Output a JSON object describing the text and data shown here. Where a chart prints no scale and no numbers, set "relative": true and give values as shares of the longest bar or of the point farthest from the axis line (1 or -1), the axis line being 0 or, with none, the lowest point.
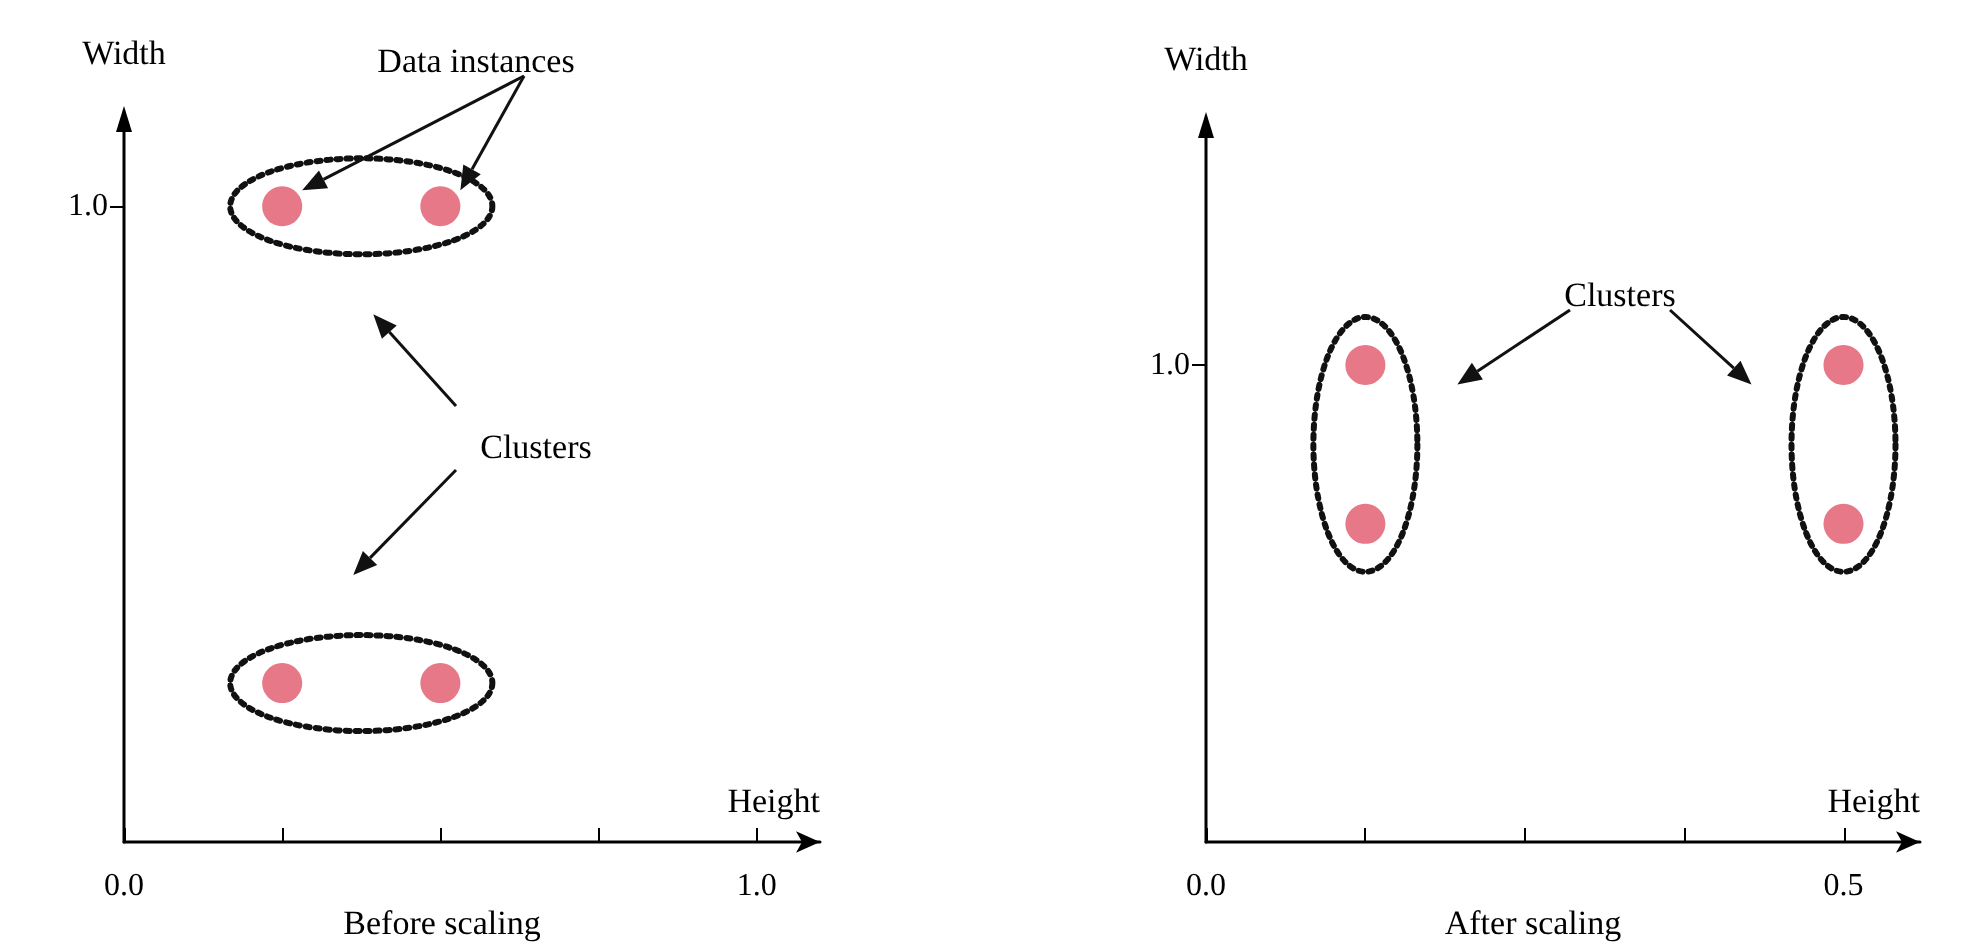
{
  "chart_data": [
    {
      "type": "scatter",
      "title": "Before scaling",
      "xlabel": "Height",
      "ylabel": "Width",
      "annotations": [
        "Data instances",
        "Clusters",
        "1.0"
      ],
      "x": [
        0.25,
        0.5,
        0.25,
        0.5
      ],
      "series": [
        {
          "color": "#e0566a",
          "values": [
            1.0,
            1.0,
            0.25,
            0.25
          ]
        }
      ],
      "xlim": [
        0,
        1.1
      ],
      "relative": true,
      "xticks": [
        {
          "value": 0,
          "label": "0.0"
        },
        {
          "value": 0.25,
          "label": null
        },
        {
          "value": 0.5,
          "label": null
        },
        {
          "value": 0.75,
          "label": null
        },
        {
          "value": 1,
          "label": "1.0"
        }
      ],
      "marker": "circle",
      "grid": false
    },
    {
      "type": "scatter",
      "title": "After scaling",
      "xlabel": "Height",
      "ylabel": "Width",
      "annotations": [
        "Clusters",
        "1.0"
      ],
      "x": [
        0.125,
        0.125,
        0.5,
        0.5
      ],
      "series": [
        {
          "color": "#e0566a",
          "values": [
            1.0,
            0.667,
            1.0,
            0.667
          ]
        }
      ],
      "xlim": [
        0,
        0.56
      ],
      "relative": true,
      "xticks": [
        {
          "value": 0,
          "label": "0.0"
        },
        {
          "value": 0.125,
          "label": null
        },
        {
          "value": 0.25,
          "label": null
        },
        {
          "value": 0.375,
          "label": null
        },
        {
          "value": 0.5,
          "label": "0.5"
        }
      ],
      "marker": "circle",
      "grid": false
    }
  ]
}
